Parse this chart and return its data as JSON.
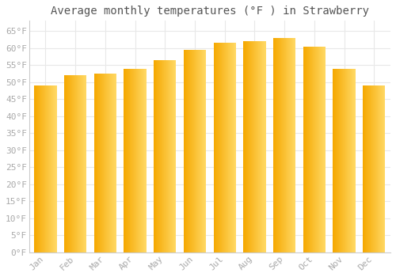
{
  "title": "Average monthly temperatures (°F ) in Strawberry",
  "months": [
    "Jan",
    "Feb",
    "Mar",
    "Apr",
    "May",
    "Jun",
    "Jul",
    "Aug",
    "Sep",
    "Oct",
    "Nov",
    "Dec"
  ],
  "values": [
    49,
    52,
    52.5,
    54,
    56.5,
    59.5,
    61.5,
    62,
    63,
    60.5,
    54,
    49
  ],
  "bar_color_left": "#F5A800",
  "bar_color_right": "#FFD966",
  "background_color": "#FFFFFF",
  "grid_color": "#E8E8E8",
  "yticks": [
    0,
    5,
    10,
    15,
    20,
    25,
    30,
    35,
    40,
    45,
    50,
    55,
    60,
    65
  ],
  "ylim": [
    0,
    68
  ],
  "title_fontsize": 10,
  "tick_fontsize": 8,
  "font_color": "#AAAAAA",
  "title_color": "#555555"
}
